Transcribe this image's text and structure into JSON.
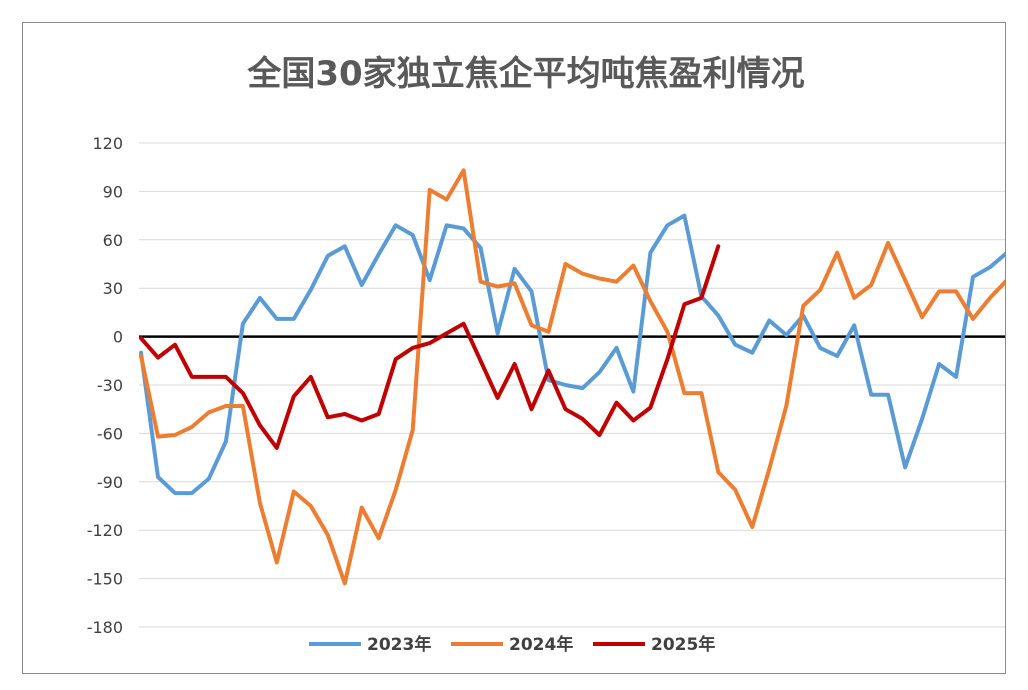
{
  "chart_data": {
    "type": "line",
    "title": "全国30家独立焦企平均吨焦盈利情况",
    "xlabel": "",
    "ylabel": "",
    "ylim": [
      -180,
      120
    ],
    "yticks": [
      120,
      90,
      60,
      30,
      0,
      -30,
      -60,
      -90,
      -120,
      -150,
      -180
    ],
    "ytick_labels": [
      "120",
      "90",
      "60",
      "30",
      "0",
      "-30",
      "-60",
      "-90",
      "-120",
      "-150",
      "-180"
    ],
    "grid": true,
    "legend_position": "bottom",
    "x_count": 52,
    "series": [
      {
        "name": "2023年",
        "color": "#5b9bd5",
        "values": [
          -10,
          -87,
          -97,
          -97,
          -88,
          -65,
          8,
          24,
          11,
          11,
          29,
          50,
          56,
          32,
          51,
          69,
          63,
          35,
          69,
          67,
          55,
          2,
          42,
          28,
          -27,
          -30,
          -32,
          -22,
          -7,
          -34,
          52,
          69,
          75,
          25,
          13,
          -5,
          -10,
          10,
          1,
          13,
          -7,
          -12,
          7,
          -36,
          -36,
          -81,
          -51,
          -17,
          -25,
          37,
          43,
          52
        ]
      },
      {
        "name": "2024年",
        "color": "#ed7d31",
        "values": [
          -12,
          -62,
          -61,
          -56,
          -47,
          -43,
          -43,
          -103,
          -140,
          -96,
          -105,
          -123,
          -153,
          -106,
          -125,
          -95,
          -58,
          91,
          85,
          103,
          34,
          31,
          33,
          7,
          3,
          45,
          39,
          36,
          34,
          44,
          22,
          3,
          -35,
          -35,
          -84,
          -95,
          -118,
          -82,
          -43,
          19,
          29,
          52,
          24,
          32,
          58,
          35,
          12,
          28,
          28,
          11,
          24,
          35
        ]
      },
      {
        "name": "2025年",
        "color": "#c00000",
        "values": [
          -1,
          -13,
          -5,
          -25,
          -25,
          -25,
          -35,
          -55,
          -69,
          -37,
          -25,
          -50,
          -48,
          -52,
          -48,
          -14,
          -7,
          -4,
          2,
          8,
          -15,
          -38,
          -17,
          -45,
          -21,
          -45,
          -51,
          -61,
          -41,
          -52,
          -44,
          -14,
          20,
          24,
          56
        ]
      }
    ]
  }
}
